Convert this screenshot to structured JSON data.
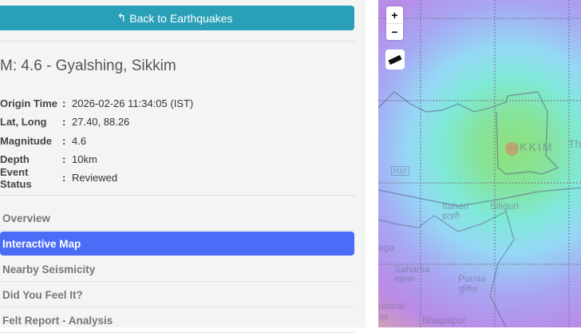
{
  "back_button": {
    "label": "Back to Earthquakes",
    "icon": "reply-arrow-icon"
  },
  "event": {
    "title": "M: 4.6 - Gyalshing, Sikkim",
    "fields": [
      {
        "label": "Origin Time",
        "value": "2026-02-26 11:34:05 (IST)"
      },
      {
        "label": "Lat, Long",
        "value": "27.40, 88.26"
      },
      {
        "label": "Magnitude",
        "value": "4.6"
      },
      {
        "label": "Depth",
        "value": "10km"
      },
      {
        "label": "Event Status",
        "value": "Reviewed"
      }
    ]
  },
  "nav": [
    {
      "label": "Overview",
      "active": false
    },
    {
      "label": "Interactive Map",
      "active": true
    },
    {
      "label": "Nearby Seismicity",
      "active": false
    },
    {
      "label": "Did You Feel It?",
      "active": false
    },
    {
      "label": "Felt Report - Analysis",
      "active": false
    }
  ],
  "map": {
    "zoom_in": "+",
    "zoom_out": "−",
    "labels": [
      "SIKKIM",
      "Thi",
      "H10",
      "Itahari",
      "इटहरी",
      "Siliguri",
      "aga",
      "Saharsa",
      "सहरसा",
      "Purnia",
      "पूर्णिया",
      "usarai",
      "राय",
      "Bhagalpur"
    ],
    "colors": {
      "accent": "#4a6cf7",
      "back_button": "#29a0b8"
    }
  }
}
